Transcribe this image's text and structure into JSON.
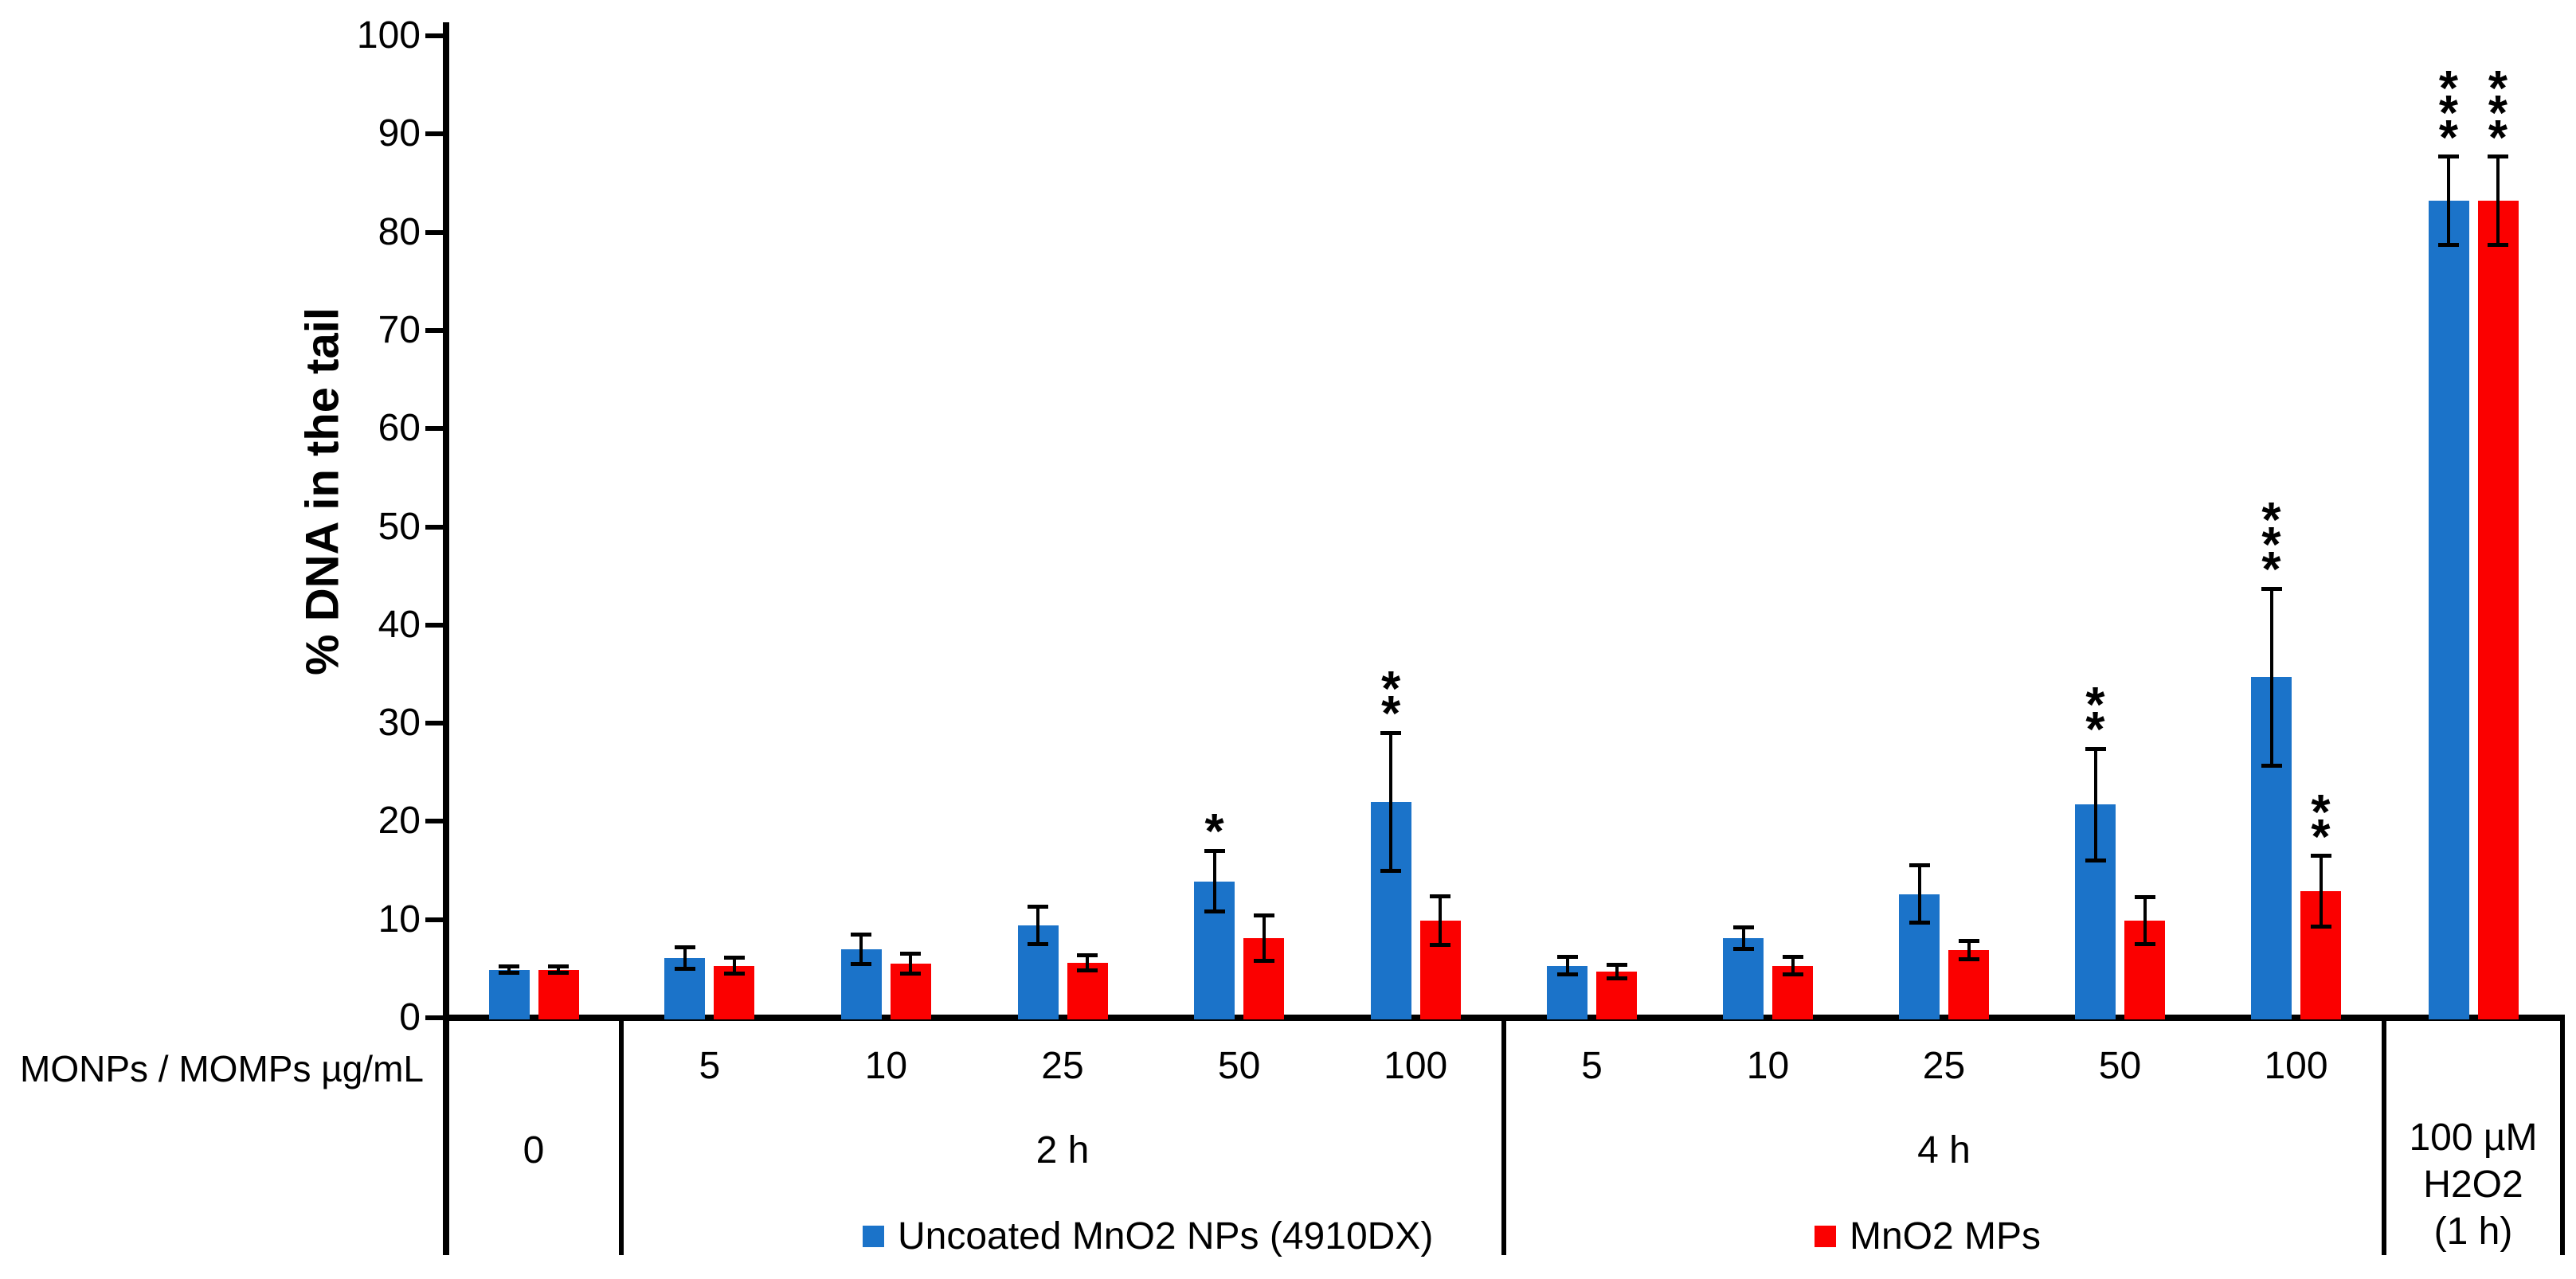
{
  "figure": {
    "y_axis_title": "% DNA in the tail",
    "x_axis_label": "MONPs / MOMPs µg/mL",
    "y_ticks": [
      0,
      10,
      20,
      30,
      40,
      50,
      60,
      70,
      80,
      90,
      100
    ]
  },
  "colors": {
    "blue": "#1B73C9",
    "red": "#FB0000",
    "axis": "#000000"
  },
  "legend": {
    "items": [
      {
        "label": "Uncoated MnO2 NPs (4910DX)",
        "color": "#1B73C9"
      },
      {
        "label": "MnO2 MPs",
        "color": "#FB0000"
      }
    ]
  },
  "chart_data": {
    "type": "bar",
    "title": "",
    "xlabel": "MONPs / MOMPs µg/mL",
    "ylabel": "% DNA in the tail",
    "ylim": [
      0,
      100
    ],
    "grid": false,
    "legend_position": "bottom",
    "series": [
      "Uncoated MnO2 NPs (4910DX)",
      "MnO2 MPs"
    ],
    "error_bars": true,
    "significance_note": "asterisks stacked vertically above error bars",
    "groups": [
      {
        "label_lines": [
          "0"
        ],
        "clusters": [
          {
            "x_label": "",
            "values": [
              4.9,
              4.9
            ],
            "errors": [
              0.3,
              0.3
            ],
            "sig": [
              "",
              ""
            ]
          }
        ]
      },
      {
        "label_lines": [
          "2 h"
        ],
        "clusters": [
          {
            "x_label": "5",
            "values": [
              6.1,
              5.3
            ],
            "errors": [
              1.1,
              0.8
            ],
            "sig": [
              "",
              ""
            ]
          },
          {
            "x_label": "10",
            "values": [
              7.0,
              5.5
            ],
            "errors": [
              1.5,
              1.0
            ],
            "sig": [
              "",
              ""
            ]
          },
          {
            "x_label": "25",
            "values": [
              9.4,
              5.6
            ],
            "errors": [
              1.9,
              0.8
            ],
            "sig": [
              "",
              ""
            ]
          },
          {
            "x_label": "50",
            "values": [
              13.9,
              8.1
            ],
            "errors": [
              3.1,
              2.3
            ],
            "sig": [
              "*",
              ""
            ]
          },
          {
            "x_label": "100",
            "values": [
              22.0,
              9.9
            ],
            "errors": [
              7.0,
              2.5
            ],
            "sig": [
              "**",
              ""
            ]
          }
        ]
      },
      {
        "label_lines": [
          "4 h"
        ],
        "clusters": [
          {
            "x_label": "5",
            "values": [
              5.3,
              4.7
            ],
            "errors": [
              0.9,
              0.7
            ],
            "sig": [
              "",
              ""
            ]
          },
          {
            "x_label": "10",
            "values": [
              8.1,
              5.3
            ],
            "errors": [
              1.1,
              0.9
            ],
            "sig": [
              "",
              ""
            ]
          },
          {
            "x_label": "25",
            "values": [
              12.6,
              6.9
            ],
            "errors": [
              2.9,
              0.9
            ],
            "sig": [
              "",
              ""
            ]
          },
          {
            "x_label": "50",
            "values": [
              21.7,
              9.9
            ],
            "errors": [
              5.7,
              2.4
            ],
            "sig": [
              "**",
              ""
            ]
          },
          {
            "x_label": "100",
            "values": [
              34.7,
              12.9
            ],
            "errors": [
              9.0,
              3.6
            ],
            "sig": [
              "***",
              "**"
            ]
          }
        ]
      },
      {
        "label_lines": [
          "100 µM",
          "H2O2",
          "(1 h)"
        ],
        "clusters": [
          {
            "x_label": "",
            "values": [
              83.2,
              83.2
            ],
            "errors": [
              4.5,
              4.5
            ],
            "sig": [
              "***",
              "***"
            ]
          }
        ]
      }
    ]
  }
}
